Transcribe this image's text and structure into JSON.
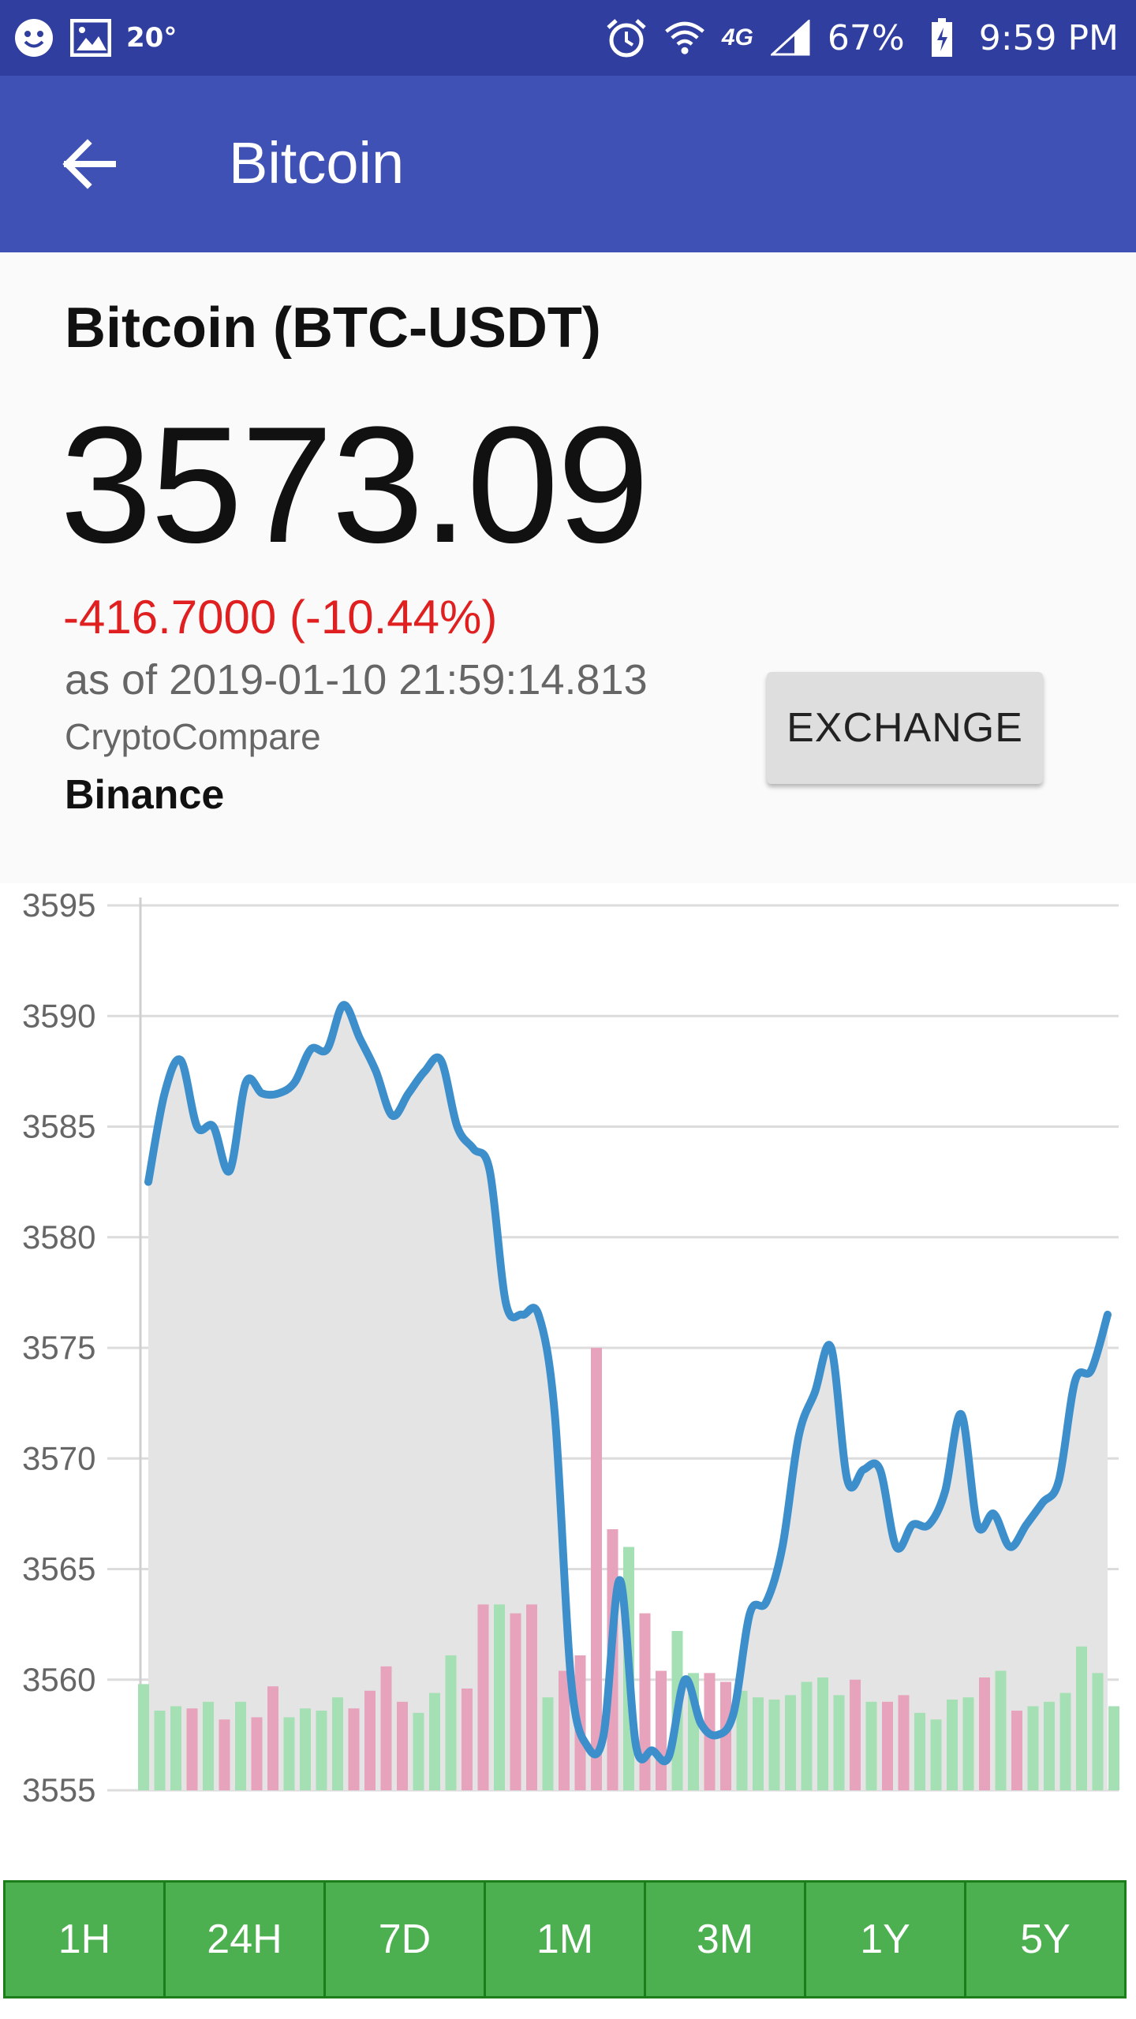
{
  "status_bar": {
    "temperature": "20°",
    "network": "4G",
    "battery": "67%",
    "time": "9:59 PM",
    "icons": [
      "smiley-icon",
      "image-icon",
      "alarm-icon",
      "wifi-icon",
      "4g-lte-icon",
      "signal-icon",
      "battery-charging-icon"
    ]
  },
  "app_bar": {
    "title": "Bitcoin",
    "back_icon": "arrow-left-icon"
  },
  "info": {
    "coin_name": "Bitcoin (BTC-USDT)",
    "price": "3573.09",
    "change": "-416.7000 (-10.44%)",
    "as_of": "as of 2019-01-10 21:59:14.813",
    "source": "CryptoCompare",
    "exchange_name": "Binance",
    "exchange_button": "EXCHANGE"
  },
  "colors": {
    "status_bar": "#303f9f",
    "app_bar": "#3f51b5",
    "negative": "#e02020",
    "line": "#3d8fcc",
    "area": "#e4e4e4",
    "volume_up": "#a5dfb4",
    "volume_down": "#e6a3bb",
    "range_button": "#4caf50"
  },
  "chart_data": {
    "type": "line",
    "ylim": [
      3555,
      3595
    ],
    "yticks": [
      "3595",
      "3590",
      "3585",
      "3580",
      "3575",
      "3570",
      "3565",
      "3560",
      "3555"
    ],
    "grid": true,
    "price_series": [
      3582.5,
      3586.5,
      3588,
      3585,
      3585,
      3583,
      3587,
      3586.5,
      3586.5,
      3587,
      3588.5,
      3588.5,
      3590.5,
      3589,
      3587.5,
      3585.5,
      3586.5,
      3587.5,
      3588,
      3585,
      3584,
      3583,
      3577,
      3576.5,
      3576.5,
      3572,
      3560,
      3557,
      3557.5,
      3564.5,
      3557,
      3556.8,
      3556.5,
      3560,
      3558,
      3557.5,
      3558.5,
      3563,
      3563.5,
      3566,
      3571,
      3573,
      3575,
      3569,
      3569.5,
      3569.5,
      3566,
      3567,
      3567,
      3568.5,
      3572,
      3567,
      3567.5,
      3566,
      3567,
      3568,
      3569,
      3573.5,
      3574,
      3576.5
    ],
    "volume_series": [
      {
        "value": 3559.8,
        "dir": "up"
      },
      {
        "value": 3558.6,
        "dir": "up"
      },
      {
        "value": 3558.8,
        "dir": "up"
      },
      {
        "value": 3558.7,
        "dir": "down"
      },
      {
        "value": 3559.0,
        "dir": "up"
      },
      {
        "value": 3558.2,
        "dir": "down"
      },
      {
        "value": 3559.0,
        "dir": "up"
      },
      {
        "value": 3558.3,
        "dir": "down"
      },
      {
        "value": 3559.7,
        "dir": "down"
      },
      {
        "value": 3558.3,
        "dir": "up"
      },
      {
        "value": 3558.7,
        "dir": "up"
      },
      {
        "value": 3558.6,
        "dir": "up"
      },
      {
        "value": 3559.2,
        "dir": "up"
      },
      {
        "value": 3558.7,
        "dir": "down"
      },
      {
        "value": 3559.5,
        "dir": "down"
      },
      {
        "value": 3560.6,
        "dir": "down"
      },
      {
        "value": 3559.0,
        "dir": "down"
      },
      {
        "value": 3558.5,
        "dir": "up"
      },
      {
        "value": 3559.4,
        "dir": "up"
      },
      {
        "value": 3561.1,
        "dir": "up"
      },
      {
        "value": 3559.6,
        "dir": "down"
      },
      {
        "value": 3563.4,
        "dir": "down"
      },
      {
        "value": 3563.4,
        "dir": "up"
      },
      {
        "value": 3563.0,
        "dir": "down"
      },
      {
        "value": 3563.4,
        "dir": "down"
      },
      {
        "value": 3559.2,
        "dir": "up"
      },
      {
        "value": 3560.4,
        "dir": "down"
      },
      {
        "value": 3561.1,
        "dir": "down"
      },
      {
        "value": 3575.0,
        "dir": "down"
      },
      {
        "value": 3566.8,
        "dir": "down"
      },
      {
        "value": 3566.0,
        "dir": "up"
      },
      {
        "value": 3563.0,
        "dir": "down"
      },
      {
        "value": 3560.4,
        "dir": "down"
      },
      {
        "value": 3562.2,
        "dir": "up"
      },
      {
        "value": 3560.3,
        "dir": "up"
      },
      {
        "value": 3560.3,
        "dir": "down"
      },
      {
        "value": 3559.9,
        "dir": "down"
      },
      {
        "value": 3559.5,
        "dir": "up"
      },
      {
        "value": 3559.2,
        "dir": "up"
      },
      {
        "value": 3559.1,
        "dir": "up"
      },
      {
        "value": 3559.3,
        "dir": "up"
      },
      {
        "value": 3559.9,
        "dir": "up"
      },
      {
        "value": 3560.1,
        "dir": "up"
      },
      {
        "value": 3559.3,
        "dir": "up"
      },
      {
        "value": 3560.0,
        "dir": "down"
      },
      {
        "value": 3559.0,
        "dir": "up"
      },
      {
        "value": 3559.0,
        "dir": "down"
      },
      {
        "value": 3559.3,
        "dir": "down"
      },
      {
        "value": 3558.5,
        "dir": "up"
      },
      {
        "value": 3558.2,
        "dir": "up"
      },
      {
        "value": 3559.1,
        "dir": "up"
      },
      {
        "value": 3559.2,
        "dir": "up"
      },
      {
        "value": 3560.1,
        "dir": "down"
      },
      {
        "value": 3560.4,
        "dir": "up"
      },
      {
        "value": 3558.6,
        "dir": "down"
      },
      {
        "value": 3558.8,
        "dir": "up"
      },
      {
        "value": 3559.0,
        "dir": "up"
      },
      {
        "value": 3559.4,
        "dir": "up"
      },
      {
        "value": 3561.5,
        "dir": "up"
      },
      {
        "value": 3560.3,
        "dir": "up"
      },
      {
        "value": 3558.8,
        "dir": "up"
      }
    ]
  },
  "ranges": [
    "1H",
    "24H",
    "7D",
    "1M",
    "3M",
    "1Y",
    "5Y"
  ]
}
